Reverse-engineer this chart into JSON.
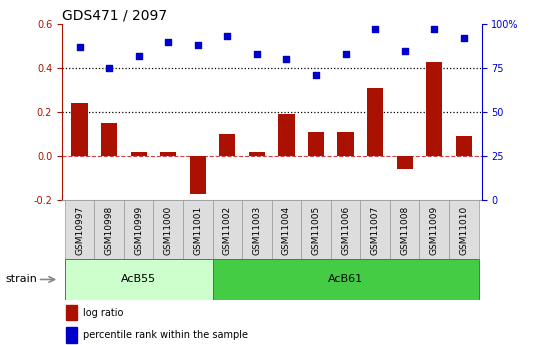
{
  "title": "GDS471 / 2097",
  "samples": [
    "GSM10997",
    "GSM10998",
    "GSM10999",
    "GSM11000",
    "GSM11001",
    "GSM11002",
    "GSM11003",
    "GSM11004",
    "GSM11005",
    "GSM11006",
    "GSM11007",
    "GSM11008",
    "GSM11009",
    "GSM11010"
  ],
  "log_ratio": [
    0.24,
    0.15,
    0.02,
    0.02,
    -0.17,
    0.1,
    0.02,
    0.19,
    0.11,
    0.11,
    0.31,
    -0.06,
    0.43,
    0.09
  ],
  "percentile_rank": [
    87,
    75,
    82,
    90,
    88,
    93,
    83,
    80,
    71,
    83,
    97,
    85,
    97,
    92
  ],
  "strains": [
    {
      "label": "AcB55",
      "start": 0,
      "end": 5
    },
    {
      "label": "AcB61",
      "start": 5,
      "end": 14
    }
  ],
  "strain_label": "strain",
  "bar_color": "#aa1100",
  "dot_color": "#0000cc",
  "left_ylim": [
    -0.2,
    0.6
  ],
  "right_ylim": [
    0,
    100
  ],
  "left_yticks": [
    -0.2,
    0.0,
    0.2,
    0.4,
    0.6
  ],
  "right_yticks": [
    0,
    25,
    50,
    75,
    100
  ],
  "hline_values": [
    0.2,
    0.4
  ],
  "zero_line": 0.0,
  "dotted_color": "black",
  "zero_line_color": "#cc4444",
  "acb55_color": "#ccffcc",
  "acb61_color": "#44cc44",
  "legend_log": "log ratio",
  "legend_pct": "percentile rank within the sample",
  "title_fontsize": 10,
  "tick_fontsize": 7,
  "sample_fontsize": 6.5
}
